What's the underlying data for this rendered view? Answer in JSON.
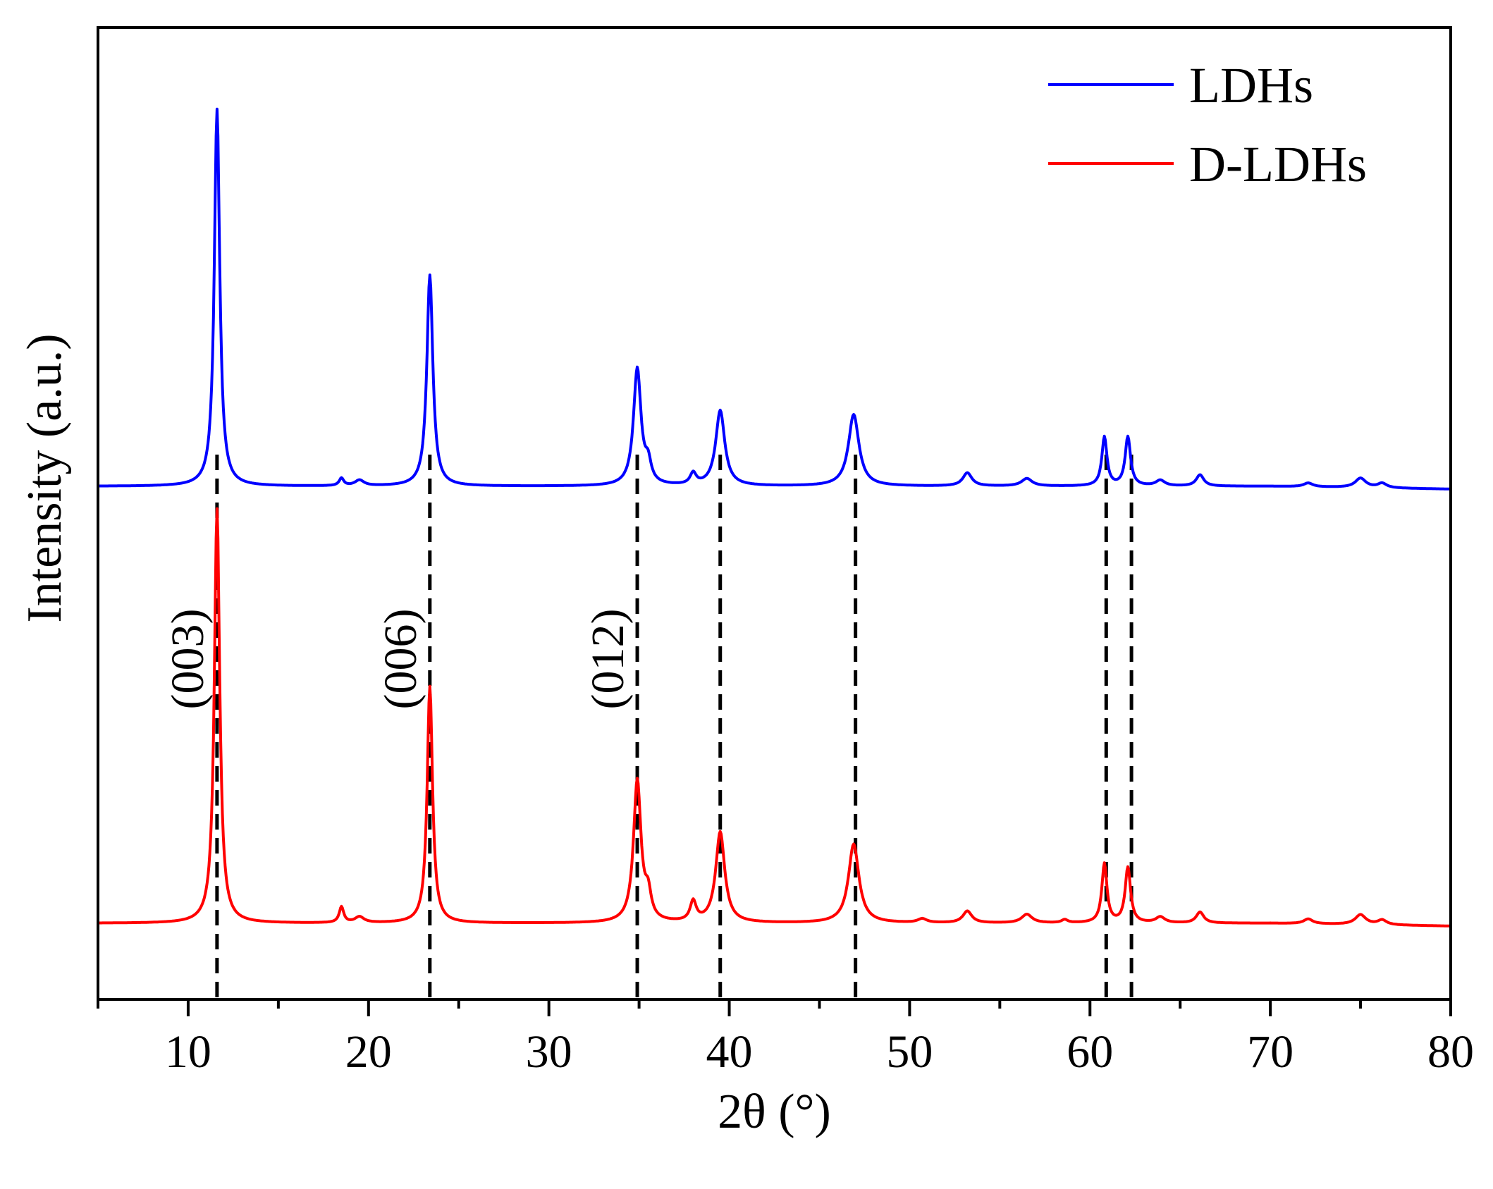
{
  "chart_data": {
    "type": "line",
    "xlabel": "2θ (°)",
    "ylabel": "Intensity (a.u.)",
    "xlim": [
      5,
      80
    ],
    "x_ticks": [
      10,
      20,
      30,
      40,
      50,
      60,
      70,
      80
    ],
    "x_minor_ticks": [
      5,
      15,
      25,
      35,
      45,
      55,
      65,
      75
    ],
    "y_ticks_shown": false,
    "grid": false,
    "legend_position": "top-right",
    "series": [
      {
        "name": "LDHs",
        "color": "#0000ff",
        "baseline": 0.0,
        "peaks": [
          {
            "x": 11.6,
            "h": 1.0,
            "w": 0.18
          },
          {
            "x": 18.5,
            "h": 0.02,
            "w": 0.15
          },
          {
            "x": 19.5,
            "h": 0.015,
            "w": 0.3
          },
          {
            "x": 23.4,
            "h": 0.56,
            "w": 0.2
          },
          {
            "x": 34.9,
            "h": 0.31,
            "w": 0.25
          },
          {
            "x": 35.5,
            "h": 0.05,
            "w": 0.2
          },
          {
            "x": 38.0,
            "h": 0.03,
            "w": 0.2
          },
          {
            "x": 39.5,
            "h": 0.2,
            "w": 0.3
          },
          {
            "x": 46.9,
            "h": 0.19,
            "w": 0.35
          },
          {
            "x": 53.2,
            "h": 0.035,
            "w": 0.3
          },
          {
            "x": 56.5,
            "h": 0.02,
            "w": 0.35
          },
          {
            "x": 60.8,
            "h": 0.13,
            "w": 0.17
          },
          {
            "x": 62.1,
            "h": 0.13,
            "w": 0.18
          },
          {
            "x": 63.9,
            "h": 0.015,
            "w": 0.3
          },
          {
            "x": 66.1,
            "h": 0.03,
            "w": 0.25
          },
          {
            "x": 72.1,
            "h": 0.01,
            "w": 0.3
          },
          {
            "x": 75.0,
            "h": 0.025,
            "w": 0.35
          },
          {
            "x": 76.2,
            "h": 0.012,
            "w": 0.3
          }
        ]
      },
      {
        "name": "D-LDHs",
        "color": "#ff0000",
        "baseline": 0.0,
        "peaks": [
          {
            "x": 11.6,
            "h": 1.05,
            "w": 0.18
          },
          {
            "x": 18.5,
            "h": 0.04,
            "w": 0.15
          },
          {
            "x": 19.5,
            "h": 0.015,
            "w": 0.3
          },
          {
            "x": 23.4,
            "h": 0.6,
            "w": 0.18
          },
          {
            "x": 34.9,
            "h": 0.36,
            "w": 0.25
          },
          {
            "x": 35.5,
            "h": 0.06,
            "w": 0.2
          },
          {
            "x": 38.0,
            "h": 0.05,
            "w": 0.2
          },
          {
            "x": 39.5,
            "h": 0.23,
            "w": 0.3
          },
          {
            "x": 46.9,
            "h": 0.2,
            "w": 0.35
          },
          {
            "x": 50.7,
            "h": 0.01,
            "w": 0.3
          },
          {
            "x": 53.2,
            "h": 0.03,
            "w": 0.3
          },
          {
            "x": 56.5,
            "h": 0.022,
            "w": 0.35
          },
          {
            "x": 58.6,
            "h": 0.008,
            "w": 0.2
          },
          {
            "x": 60.8,
            "h": 0.15,
            "w": 0.17
          },
          {
            "x": 62.1,
            "h": 0.14,
            "w": 0.18
          },
          {
            "x": 63.9,
            "h": 0.015,
            "w": 0.3
          },
          {
            "x": 66.1,
            "h": 0.028,
            "w": 0.25
          },
          {
            "x": 72.1,
            "h": 0.012,
            "w": 0.3
          },
          {
            "x": 75.0,
            "h": 0.025,
            "w": 0.35
          },
          {
            "x": 76.2,
            "h": 0.012,
            "w": 0.3
          }
        ]
      }
    ],
    "reference_lines": [
      11.6,
      23.4,
      34.9,
      39.5,
      47.0,
      60.9,
      62.3
    ],
    "annotations": [
      {
        "text": "(003)",
        "x": 11.6
      },
      {
        "text": "(006)",
        "x": 23.4
      },
      {
        "text": "(012)",
        "x": 34.9
      }
    ]
  }
}
